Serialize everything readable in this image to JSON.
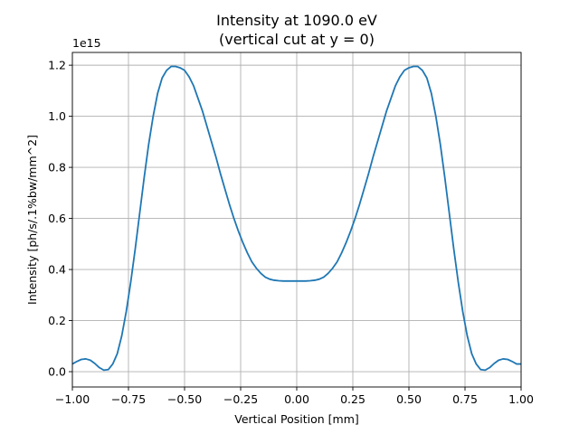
{
  "chart_data": {
    "type": "line",
    "title_line1": "Intensity at 1090.0 eV",
    "title_line2": "(vertical cut at y = 0)",
    "xlabel": "Vertical Position [mm]",
    "ylabel": "Intensity [ph/s/.1%bw/mm^2]",
    "y_offset_label": "1e15",
    "xlim": [
      -1.0,
      1.0
    ],
    "ylim": [
      -0.06,
      1.25
    ],
    "x_ticks": [
      -1.0,
      -0.75,
      -0.5,
      -0.25,
      0.0,
      0.25,
      0.5,
      0.75,
      1.0
    ],
    "x_tick_labels": [
      "−1.00",
      "−0.75",
      "−0.50",
      "−0.25",
      "0.00",
      "0.25",
      "0.50",
      "0.75",
      "1.00"
    ],
    "y_ticks": [
      0.0,
      0.2,
      0.4,
      0.6,
      0.8,
      1.0,
      1.2
    ],
    "y_tick_labels": [
      "0.0",
      "0.2",
      "0.4",
      "0.6",
      "0.8",
      "1.0",
      "1.2"
    ],
    "grid": true,
    "line_color": "#1f77b4",
    "series": [
      {
        "x": [
          -1.0,
          -0.98,
          -0.96,
          -0.94,
          -0.92,
          -0.9,
          -0.88,
          -0.86,
          -0.84,
          -0.82,
          -0.8,
          -0.78,
          -0.76,
          -0.74,
          -0.72,
          -0.7,
          -0.68,
          -0.66,
          -0.64,
          -0.62,
          -0.6,
          -0.58,
          -0.56,
          -0.54,
          -0.52,
          -0.5,
          -0.48,
          -0.46,
          -0.44,
          -0.42,
          -0.4,
          -0.38,
          -0.36,
          -0.34,
          -0.32,
          -0.3,
          -0.28,
          -0.26,
          -0.24,
          -0.22,
          -0.2,
          -0.18,
          -0.16,
          -0.14,
          -0.12,
          -0.1,
          -0.08,
          -0.06,
          -0.04,
          -0.02,
          0.0,
          0.02,
          0.04,
          0.06,
          0.08,
          0.1,
          0.12,
          0.14,
          0.16,
          0.18,
          0.2,
          0.22,
          0.24,
          0.26,
          0.28,
          0.3,
          0.32,
          0.34,
          0.36,
          0.38,
          0.4,
          0.42,
          0.44,
          0.46,
          0.48,
          0.5,
          0.52,
          0.54,
          0.56,
          0.58,
          0.6,
          0.62,
          0.64,
          0.66,
          0.68,
          0.7,
          0.72,
          0.74,
          0.76,
          0.78,
          0.8,
          0.82,
          0.84,
          0.86,
          0.88,
          0.9,
          0.92,
          0.94,
          0.96,
          0.98,
          1.0
        ],
        "y": [
          0.03,
          0.04,
          0.048,
          0.05,
          0.045,
          0.032,
          0.016,
          0.006,
          0.008,
          0.03,
          0.07,
          0.14,
          0.235,
          0.35,
          0.48,
          0.62,
          0.76,
          0.89,
          1.0,
          1.09,
          1.15,
          1.18,
          1.195,
          1.195,
          1.19,
          1.18,
          1.155,
          1.12,
          1.07,
          1.02,
          0.96,
          0.9,
          0.84,
          0.775,
          0.715,
          0.655,
          0.6,
          0.55,
          0.505,
          0.465,
          0.43,
          0.405,
          0.385,
          0.37,
          0.362,
          0.358,
          0.356,
          0.355,
          0.355,
          0.355,
          0.355,
          0.355,
          0.355,
          0.356,
          0.358,
          0.362,
          0.37,
          0.385,
          0.405,
          0.43,
          0.465,
          0.505,
          0.55,
          0.6,
          0.655,
          0.715,
          0.775,
          0.84,
          0.9,
          0.96,
          1.02,
          1.07,
          1.12,
          1.155,
          1.18,
          1.19,
          1.195,
          1.195,
          1.18,
          1.15,
          1.09,
          1.0,
          0.89,
          0.76,
          0.62,
          0.48,
          0.35,
          0.235,
          0.14,
          0.07,
          0.03,
          0.008,
          0.006,
          0.016,
          0.032,
          0.045,
          0.05,
          0.048,
          0.04,
          0.03,
          0.03
        ]
      }
    ]
  }
}
